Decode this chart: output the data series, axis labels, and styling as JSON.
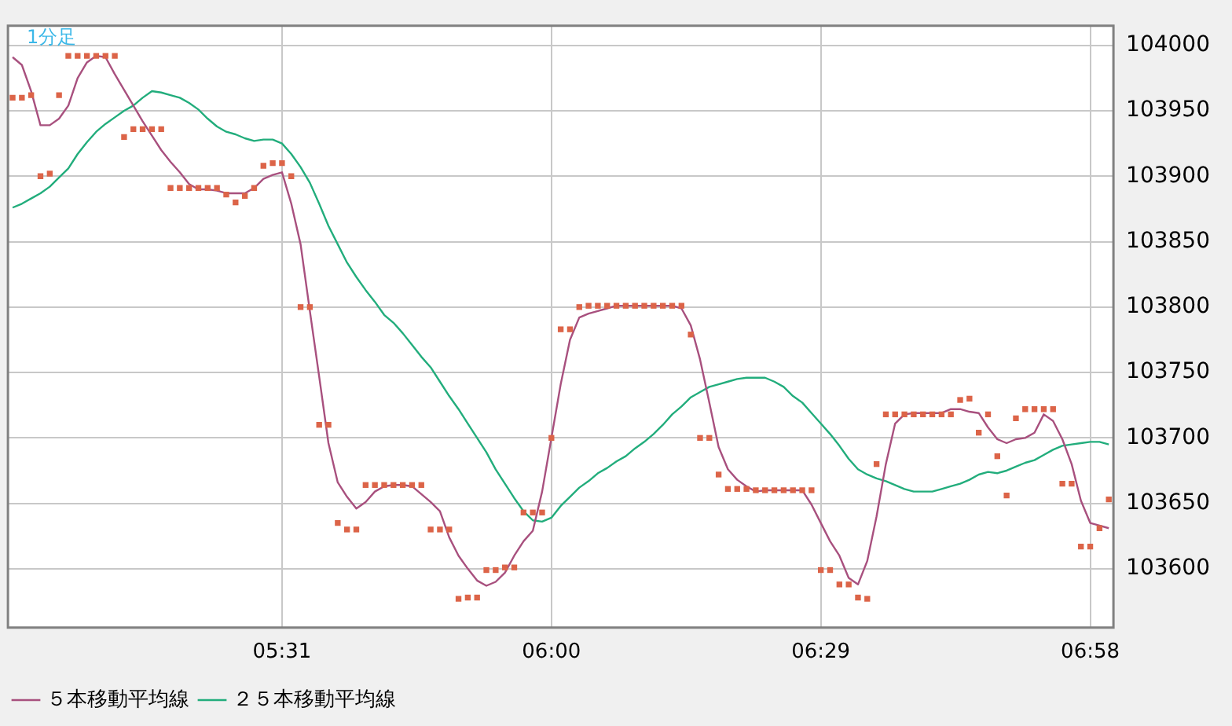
{
  "chart_data": {
    "type": "line",
    "annotations": [
      "1分足"
    ],
    "categories": [
      null,
      null,
      null,
      null,
      null,
      null,
      null,
      null,
      null,
      null,
      null,
      null,
      null,
      null,
      null,
      null,
      null,
      null,
      null,
      null,
      null,
      null,
      null,
      null,
      null,
      null,
      null,
      null,
      null,
      "05:31",
      null,
      null,
      null,
      null,
      null,
      null,
      null,
      null,
      null,
      null,
      null,
      null,
      null,
      null,
      null,
      null,
      null,
      null,
      null,
      null,
      null,
      null,
      null,
      null,
      null,
      null,
      null,
      null,
      "06:00",
      null,
      null,
      null,
      null,
      null,
      null,
      null,
      null,
      null,
      null,
      null,
      null,
      null,
      null,
      null,
      null,
      null,
      null,
      null,
      null,
      null,
      null,
      null,
      null,
      null,
      null,
      null,
      null,
      "06:29",
      null,
      null,
      null,
      null,
      null,
      null,
      null,
      null,
      null,
      null,
      null,
      null,
      null,
      null,
      null,
      null,
      null,
      null,
      null,
      null,
      null,
      null,
      null,
      null,
      null,
      null,
      null,
      null,
      "06:58",
      null,
      null
    ],
    "series": [
      {
        "type": "scatter",
        "marker": "square",
        "color": "#dc6448",
        "values": [
          103960,
          103960,
          103962,
          103900,
          103902,
          103962,
          103992,
          103992,
          103992,
          103992,
          103992,
          103992,
          103930,
          103936,
          103936,
          103936,
          103936,
          103891,
          103891,
          103891,
          103891,
          103891,
          103891,
          103886,
          103880,
          103885,
          103891,
          103908,
          103910,
          103910,
          103900,
          103800,
          103800,
          103710,
          103710,
          103635,
          103630,
          103630,
          103664,
          103664,
          103664,
          103664,
          103664,
          103664,
          103664,
          103630,
          103630,
          103630,
          103577,
          103578,
          103578,
          103599,
          103599,
          103601,
          103601,
          103643,
          103643,
          103643,
          103700,
          103783,
          103783,
          103800,
          103801,
          103801,
          103801,
          103801,
          103801,
          103801,
          103801,
          103801,
          103801,
          103801,
          103801,
          103779,
          103700,
          103700,
          103672,
          103661,
          103661,
          103661,
          103660,
          103660,
          103660,
          103660,
          103660,
          103660,
          103660,
          103599,
          103599,
          103588,
          103588,
          103578,
          103577,
          103680,
          103718,
          103718,
          103718,
          103718,
          103718,
          103718,
          103718,
          103718,
          103729,
          103730,
          103704,
          103718,
          103686,
          103656,
          103715,
          103722,
          103722,
          103722,
          103722,
          103665,
          103665,
          103617,
          103617,
          103631,
          103653
        ]
      },
      {
        "name": "５本移動平均線",
        "color": "#a8507e",
        "values": [
          103991,
          103985,
          103965,
          103939,
          103939,
          103944,
          103954,
          103975,
          103987,
          103992,
          103991,
          103978,
          103966,
          103954,
          103942,
          103931,
          103920,
          103911,
          103903,
          103894,
          103890,
          103890,
          103889,
          103887,
          103887,
          103887,
          103891,
          103898,
          103901,
          103903,
          103879,
          103848,
          103797,
          103747,
          103696,
          103666,
          103655,
          103646,
          103651,
          103659,
          103663,
          103664,
          103664,
          103663,
          103657,
          103651,
          103644,
          103624,
          103610,
          103600,
          103591,
          103587,
          103590,
          103597,
          103610,
          103621,
          103629,
          103659,
          103700,
          103741,
          103775,
          103792,
          103795,
          103797,
          103799,
          103801,
          103801,
          103801,
          103801,
          103801,
          103801,
          103801,
          103799,
          103786,
          103760,
          103727,
          103693,
          103676,
          103668,
          103663,
          103659,
          103660,
          103660,
          103660,
          103660,
          103660,
          103649,
          103635,
          103621,
          103610,
          103593,
          103588,
          103606,
          103640,
          103680,
          103711,
          103718,
          103719,
          103719,
          103719,
          103719,
          103722,
          103722,
          103720,
          103719,
          103708,
          103699,
          103696,
          103699,
          103700,
          103704,
          103718,
          103713,
          103699,
          103680,
          103652,
          103635,
          103633,
          103631
        ]
      },
      {
        "name": "２５本移動平均線",
        "color": "#22ad7c",
        "values": [
          103876,
          103879,
          103883,
          103887,
          103892,
          103899,
          103906,
          103917,
          103926,
          103934,
          103940,
          103945,
          103950,
          103954,
          103960,
          103965,
          103964,
          103962,
          103960,
          103956,
          103951,
          103944,
          103938,
          103934,
          103932,
          103929,
          103927,
          103928,
          103928,
          103925,
          103917,
          103907,
          103895,
          103879,
          103862,
          103848,
          103834,
          103823,
          103813,
          103804,
          103794,
          103788,
          103780,
          103771,
          103762,
          103754,
          103743,
          103732,
          103722,
          103711,
          103700,
          103689,
          103676,
          103665,
          103654,
          103644,
          103637,
          103636,
          103639,
          103648,
          103655,
          103662,
          103667,
          103673,
          103677,
          103682,
          103686,
          103692,
          103697,
          103703,
          103710,
          103718,
          103724,
          103731,
          103735,
          103739,
          103741,
          103743,
          103745,
          103746,
          103746,
          103746,
          103743,
          103739,
          103732,
          103727,
          103719,
          103711,
          103703,
          103694,
          103684,
          103676,
          103672,
          103669,
          103667,
          103664,
          103661,
          103659,
          103659,
          103659,
          103661,
          103663,
          103665,
          103668,
          103672,
          103674,
          103673,
          103675,
          103678,
          103681,
          103683,
          103687,
          103691,
          103694,
          103695,
          103696,
          103697,
          103697,
          103695
        ]
      }
    ],
    "ylim": [
      103555,
      104015
    ],
    "yticks": [
      103600,
      103650,
      103700,
      103750,
      103800,
      103850,
      103900,
      103950,
      104000
    ],
    "grid": true,
    "legend": "bottom left"
  }
}
